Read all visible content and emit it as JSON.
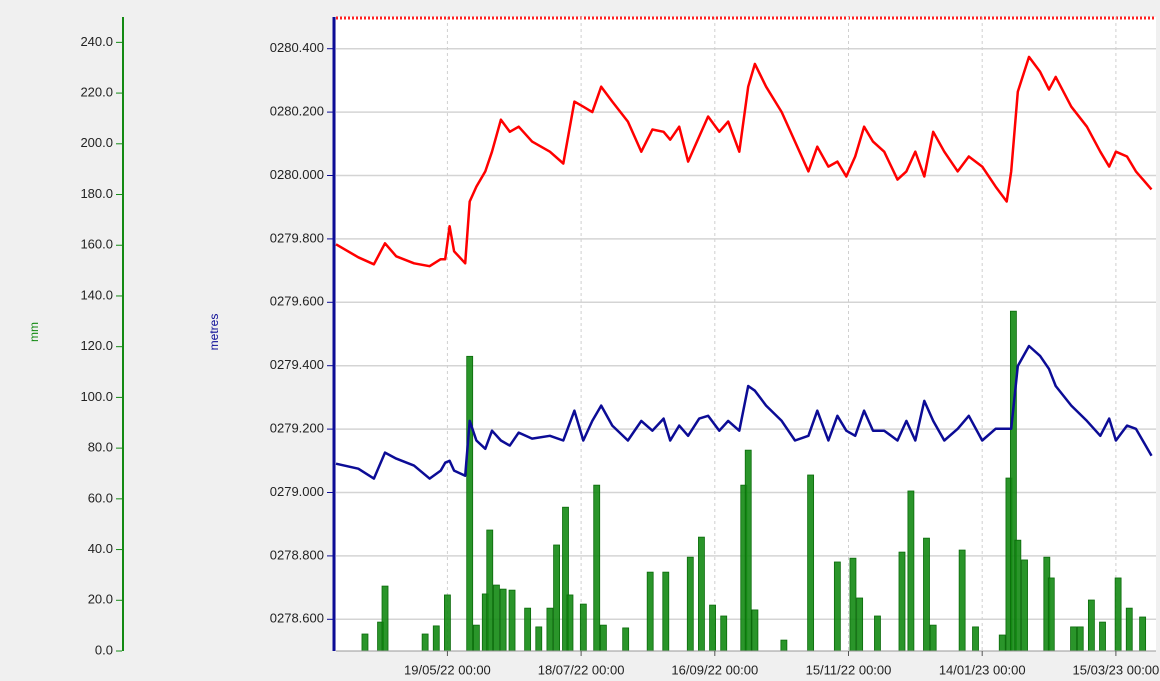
{
  "chart_data": {
    "type": "line",
    "y_label": "metres",
    "y2_label": "mm",
    "xlim": [
      "2022-03-30",
      "2023-04-02"
    ],
    "xticks": [
      {
        "value": "2022-05-19",
        "label": "19/05/22 00:00"
      },
      {
        "value": "2022-07-18",
        "label": "18/07/22 00:00"
      },
      {
        "value": "2022-09-16",
        "label": "16/09/22 00:00"
      },
      {
        "value": "2022-11-15",
        "label": "15/11/22 00:00"
      },
      {
        "value": "2023-01-14",
        "label": "14/01/23 00:00"
      },
      {
        "value": "2023-03-15",
        "label": "15/03/23 00:00"
      }
    ],
    "ylim": [
      278.5,
      280.5
    ],
    "yticks": [
      {
        "value": 278.6,
        "label": "0278.600"
      },
      {
        "value": 278.8,
        "label": "0278.800"
      },
      {
        "value": 279.0,
        "label": "0279.000"
      },
      {
        "value": 279.2,
        "label": "0279.200"
      },
      {
        "value": 279.4,
        "label": "0279.400"
      },
      {
        "value": 279.6,
        "label": "0279.600"
      },
      {
        "value": 279.8,
        "label": "0279.800"
      },
      {
        "value": 280.0,
        "label": "0280.000"
      },
      {
        "value": 280.2,
        "label": "0280.200"
      },
      {
        "value": 280.4,
        "label": "0280.400"
      }
    ],
    "y2lim": [
      0,
      250
    ],
    "y2ticks": [
      {
        "value": 0,
        "label": "0.0"
      },
      {
        "value": 20,
        "label": "20.0"
      },
      {
        "value": 40,
        "label": "40.0"
      },
      {
        "value": 60,
        "label": "60.0"
      },
      {
        "value": 80,
        "label": "80.0"
      },
      {
        "value": 100,
        "label": "100.0"
      },
      {
        "value": 120,
        "label": "120.0"
      },
      {
        "value": 140,
        "label": "140.0"
      },
      {
        "value": 160,
        "label": "160.0"
      },
      {
        "value": 180,
        "label": "180.0"
      },
      {
        "value": 200,
        "label": "200.0"
      },
      {
        "value": 220,
        "label": "220.0"
      },
      {
        "value": 240,
        "label": "240.0"
      }
    ],
    "grid": true,
    "series": [
      {
        "type": "bar",
        "axis": "y2",
        "color": "#138a13",
        "x": [
          "2022-04-12",
          "2022-04-19",
          "2022-04-21",
          "2022-05-09",
          "2022-05-14",
          "2022-05-19",
          "2022-05-29",
          "2022-06-01",
          "2022-06-05",
          "2022-06-07",
          "2022-06-10",
          "2022-06-13",
          "2022-06-17",
          "2022-06-24",
          "2022-06-29",
          "2022-07-04",
          "2022-07-07",
          "2022-07-11",
          "2022-07-13",
          "2022-07-19",
          "2022-07-25",
          "2022-07-28",
          "2022-08-07",
          "2022-08-18",
          "2022-08-25",
          "2022-09-05",
          "2022-09-10",
          "2022-09-15",
          "2022-09-20",
          "2022-09-29",
          "2022-10-01",
          "2022-10-04",
          "2022-10-17",
          "2022-10-29",
          "2022-11-10",
          "2022-11-17",
          "2022-11-20",
          "2022-11-28",
          "2022-12-09",
          "2022-12-13",
          "2022-12-20",
          "2022-12-23",
          "2023-01-05",
          "2023-01-11",
          "2023-01-23",
          "2023-01-26",
          "2023-01-28",
          "2023-01-30",
          "2023-02-02",
          "2023-02-12",
          "2023-02-14",
          "2023-02-24",
          "2023-02-27",
          "2023-03-04",
          "2023-03-09",
          "2023-03-16",
          "2023-03-21",
          "2023-03-27"
        ],
        "values": [
          6.7,
          11.4,
          25.6,
          6.7,
          9.9,
          22.1,
          116.2,
          10.2,
          22.5,
          47.7,
          26.0,
          24.4,
          24.0,
          16.9,
          9.5,
          16.9,
          41.8,
          56.7,
          22.1,
          18.5,
          65.4,
          10.2,
          9.1,
          31.1,
          31.1,
          37.0,
          44.9,
          18.1,
          13.8,
          65.4,
          79.2,
          16.2,
          4.3,
          69.4,
          35.1,
          36.6,
          20.9,
          13.8,
          39.0,
          63.1,
          44.5,
          10.2,
          39.8,
          9.5,
          6.3,
          68.2,
          134.0,
          43.7,
          35.9,
          37.0,
          28.8,
          9.5,
          9.5,
          20.1,
          11.4,
          28.8,
          16.9,
          13.4
        ]
      },
      {
        "type": "line",
        "color": "#ff0000",
        "x": [
          "2022-03-30",
          "2022-04-09",
          "2022-04-16",
          "2022-04-21",
          "2022-04-26",
          "2022-05-04",
          "2022-05-11",
          "2022-05-16",
          "2022-05-18",
          "2022-05-20",
          "2022-05-22",
          "2022-05-27",
          "2022-05-29",
          "2022-06-01",
          "2022-06-05",
          "2022-06-08",
          "2022-06-12",
          "2022-06-16",
          "2022-06-20",
          "2022-06-26",
          "2022-07-04",
          "2022-07-10",
          "2022-07-15",
          "2022-07-19",
          "2022-07-23",
          "2022-07-27",
          "2022-08-01",
          "2022-08-08",
          "2022-08-14",
          "2022-08-19",
          "2022-08-24",
          "2022-08-27",
          "2022-08-31",
          "2022-09-04",
          "2022-09-09",
          "2022-09-13",
          "2022-09-18",
          "2022-09-22",
          "2022-09-27",
          "2022-10-01",
          "2022-10-04",
          "2022-10-09",
          "2022-10-16",
          "2022-10-22",
          "2022-10-28",
          "2022-11-01",
          "2022-11-06",
          "2022-11-10",
          "2022-11-14",
          "2022-11-18",
          "2022-11-22",
          "2022-11-26",
          "2022-12-01",
          "2022-12-07",
          "2022-12-11",
          "2022-12-15",
          "2022-12-19",
          "2022-12-23",
          "2022-12-28",
          "2023-01-03",
          "2023-01-08",
          "2023-01-14",
          "2023-01-20",
          "2023-01-25",
          "2023-01-27",
          "2023-01-30",
          "2023-02-04",
          "2023-02-09",
          "2023-02-13",
          "2023-02-16",
          "2023-02-23",
          "2023-03-02",
          "2023-03-08",
          "2023-03-12",
          "2023-03-15",
          "2023-03-20",
          "2023-03-24",
          "2023-03-31"
        ],
        "values": [
          279.783,
          279.742,
          279.72,
          279.786,
          279.745,
          279.723,
          279.714,
          279.736,
          279.736,
          279.84,
          279.761,
          279.723,
          279.918,
          279.965,
          280.013,
          280.075,
          280.176,
          280.138,
          280.154,
          280.107,
          280.075,
          280.038,
          280.233,
          280.217,
          280.2,
          280.28,
          280.233,
          280.17,
          280.075,
          280.145,
          280.138,
          280.113,
          280.154,
          280.044,
          280.123,
          280.186,
          280.138,
          280.17,
          280.075,
          280.28,
          280.352,
          280.28,
          280.2,
          280.107,
          280.013,
          280.091,
          280.028,
          280.044,
          279.997,
          280.06,
          280.154,
          280.107,
          280.075,
          279.987,
          280.013,
          280.075,
          279.997,
          280.138,
          280.075,
          280.013,
          280.06,
          280.028,
          279.965,
          279.918,
          280.013,
          280.264,
          280.374,
          280.327,
          280.271,
          280.311,
          280.217,
          280.154,
          280.075,
          280.028,
          280.075,
          280.06,
          280.013,
          279.956
        ]
      },
      {
        "type": "line",
        "color": "#0c0c96",
        "x": [
          "2022-03-30",
          "2022-04-09",
          "2022-04-16",
          "2022-04-21",
          "2022-04-26",
          "2022-05-04",
          "2022-05-11",
          "2022-05-16",
          "2022-05-18",
          "2022-05-20",
          "2022-05-22",
          "2022-05-27",
          "2022-05-29",
          "2022-06-01",
          "2022-06-05",
          "2022-06-08",
          "2022-06-12",
          "2022-06-16",
          "2022-06-20",
          "2022-06-26",
          "2022-07-04",
          "2022-07-10",
          "2022-07-15",
          "2022-07-19",
          "2022-07-23",
          "2022-07-27",
          "2022-08-01",
          "2022-08-08",
          "2022-08-14",
          "2022-08-19",
          "2022-08-24",
          "2022-08-27",
          "2022-08-31",
          "2022-09-04",
          "2022-09-09",
          "2022-09-13",
          "2022-09-18",
          "2022-09-22",
          "2022-09-27",
          "2022-10-01",
          "2022-10-04",
          "2022-10-09",
          "2022-10-16",
          "2022-10-22",
          "2022-10-28",
          "2022-11-01",
          "2022-11-06",
          "2022-11-10",
          "2022-11-14",
          "2022-11-18",
          "2022-11-22",
          "2022-11-26",
          "2022-12-01",
          "2022-12-07",
          "2022-12-11",
          "2022-12-15",
          "2022-12-19",
          "2022-12-23",
          "2022-12-28",
          "2023-01-03",
          "2023-01-08",
          "2023-01-14",
          "2023-01-20",
          "2023-01-25",
          "2023-01-27",
          "2023-01-30",
          "2023-02-04",
          "2023-02-09",
          "2023-02-13",
          "2023-02-16",
          "2023-02-23",
          "2023-03-02",
          "2023-03-08",
          "2023-03-12",
          "2023-03-15",
          "2023-03-20",
          "2023-03-24",
          "2023-03-31"
        ],
        "values": [
          279.091,
          279.075,
          279.044,
          279.126,
          279.107,
          279.085,
          279.044,
          279.069,
          279.094,
          279.1,
          279.069,
          279.053,
          279.226,
          279.164,
          279.138,
          279.195,
          279.164,
          279.148,
          279.189,
          279.17,
          279.179,
          279.164,
          279.258,
          279.164,
          279.226,
          279.274,
          279.211,
          279.164,
          279.226,
          279.195,
          279.233,
          279.164,
          279.211,
          279.179,
          279.233,
          279.242,
          279.195,
          279.226,
          279.195,
          279.336,
          279.321,
          279.274,
          279.226,
          279.164,
          279.179,
          279.258,
          279.164,
          279.242,
          279.195,
          279.179,
          279.258,
          279.195,
          279.195,
          279.164,
          279.226,
          279.164,
          279.289,
          279.226,
          279.164,
          279.201,
          279.242,
          279.164,
          279.201,
          279.201,
          279.201,
          279.399,
          279.462,
          279.431,
          279.39,
          279.336,
          279.274,
          279.226,
          279.179,
          279.233,
          279.164,
          279.211,
          279.201,
          279.116
        ]
      }
    ]
  }
}
